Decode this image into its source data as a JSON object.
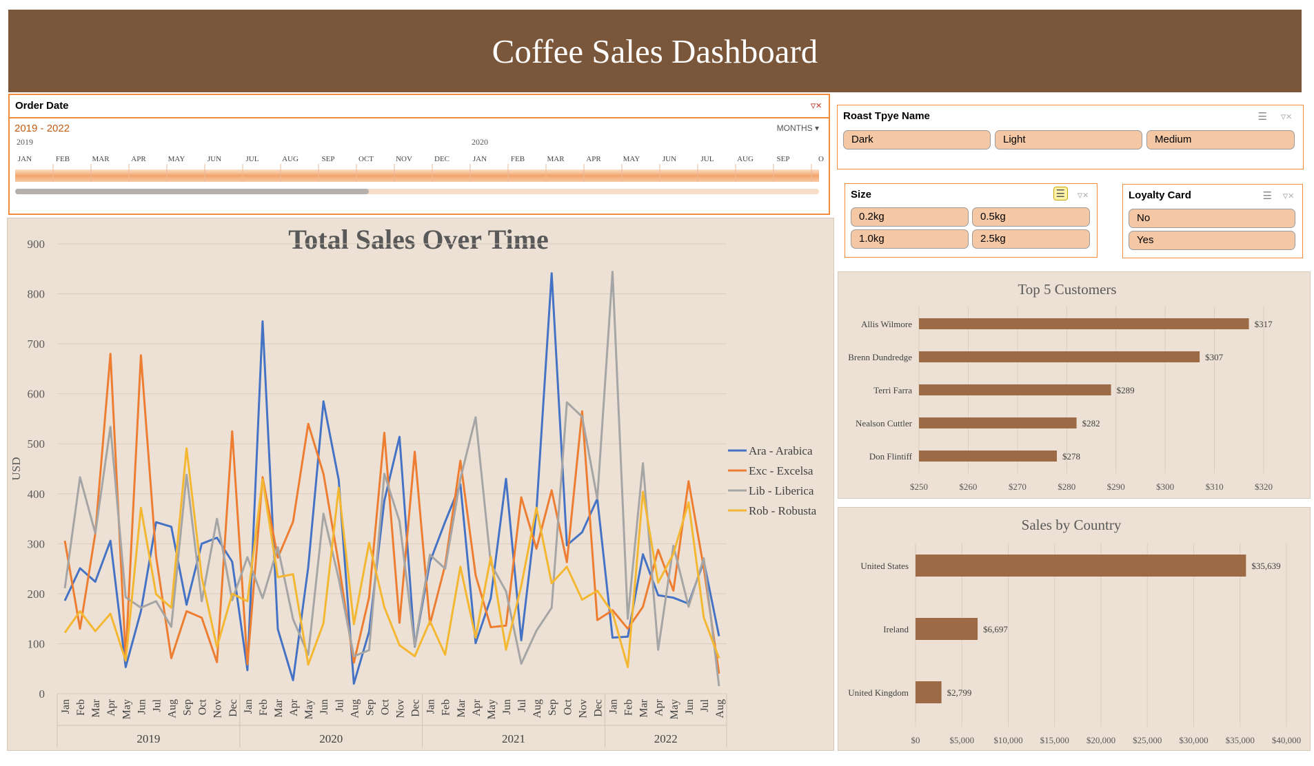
{
  "header": {
    "title": "Coffee Sales Dashboard"
  },
  "timeline": {
    "title": "Order Date",
    "range": "2019 - 2022",
    "unit": "MONTHS",
    "years": [
      "2019",
      "2020"
    ],
    "months": [
      "JAN",
      "FEB",
      "MAR",
      "APR",
      "MAY",
      "JUN",
      "JUL",
      "AUG",
      "SEP",
      "OCT",
      "NOV",
      "DEC",
      "JAN",
      "FEB",
      "MAR",
      "APR",
      "MAY",
      "JUN",
      "JUL",
      "AUG",
      "SEP",
      "O"
    ],
    "scroll_position": 0.44
  },
  "slicers": {
    "roast": {
      "title": "Roast Tpye Name",
      "items": [
        "Dark",
        "Light",
        "Medium"
      ]
    },
    "size": {
      "title": "Size",
      "items": [
        "0.2kg",
        "0.5kg",
        "1.0kg",
        "2.5kg"
      ]
    },
    "loyalty": {
      "title": "Loyalty Card",
      "items": [
        "No",
        "Yes"
      ]
    }
  },
  "colors": {
    "brand": "#7a563b",
    "accent": "#ef8b3a",
    "chip": "#f4c8a5",
    "chart_bg": "#ede1d5",
    "bar": "#9c6a45"
  },
  "chart_data": [
    {
      "type": "line",
      "title": "Total Sales Over Time",
      "xlabel": "",
      "ylabel": "USD",
      "ylim": [
        0,
        900
      ],
      "yticks": [
        0,
        100,
        200,
        300,
        400,
        500,
        600,
        700,
        800,
        900
      ],
      "grid": true,
      "legend": "right",
      "x_months": [
        "Jan",
        "Feb",
        "Mar",
        "Apr",
        "May",
        "Jun",
        "Jul",
        "Aug",
        "Sep",
        "Oct",
        "Nov",
        "Dec",
        "Jan",
        "Feb",
        "Mar",
        "Apr",
        "May",
        "Jun",
        "Jul",
        "Aug",
        "Sep",
        "Oct",
        "Nov",
        "Dec",
        "Jan",
        "Feb",
        "Mar",
        "Apr",
        "May",
        "Jun",
        "Jul",
        "Aug",
        "Sep",
        "Oct",
        "Nov",
        "Dec",
        "Jan",
        "Feb",
        "Mar",
        "Apr",
        "May",
        "Jun",
        "Jul",
        "Aug"
      ],
      "x_years": [
        "2019",
        "2020",
        "2021",
        "2022"
      ],
      "series": [
        {
          "name": "Ara - Arabica",
          "color": "#4472c4",
          "values": [
            186,
            251,
            224,
            306,
            53,
            165,
            343,
            334,
            178,
            300,
            312,
            264,
            47,
            745,
            129,
            27,
            253,
            585,
            428,
            20,
            124,
            386,
            514,
            94,
            264,
            344,
            419,
            101,
            191,
            430,
            107,
            365,
            841,
            297,
            323,
            390,
            112,
            114,
            279,
            197,
            192,
            180,
            265,
            115
          ]
        },
        {
          "name": "Exc - Excelsa",
          "color": "#ed7d31",
          "values": [
            306,
            130,
            320,
            680,
            72,
            677,
            275,
            71,
            165,
            152,
            63,
            525,
            59,
            433,
            272,
            344,
            540,
            440,
            260,
            62,
            193,
            522,
            142,
            484,
            139,
            257,
            466,
            237,
            133,
            136,
            393,
            290,
            407,
            263,
            565,
            147,
            167,
            130,
            174,
            288,
            206,
            425,
            251,
            40
          ]
        },
        {
          "name": "Lib - Liberica",
          "color": "#a5a5a5",
          "values": [
            211,
            433,
            321,
            534,
            193,
            172,
            185,
            134,
            438,
            185,
            350,
            187,
            273,
            191,
            293,
            149,
            78,
            360,
            230,
            75,
            87,
            440,
            345,
            95,
            278,
            250,
            430,
            553,
            260,
            205,
            60,
            126,
            172,
            583,
            554,
            390,
            844,
            150,
            461,
            88,
            296,
            174,
            271,
            15
          ]
        },
        {
          "name": "Rob - Robusta",
          "color": "#f4b731",
          "values": [
            122,
            165,
            125,
            160,
            66,
            372,
            199,
            172,
            491,
            233,
            93,
            200,
            185,
            429,
            233,
            239,
            58,
            141,
            412,
            139,
            302,
            173,
            97,
            75,
            145,
            78,
            254,
            112,
            274,
            88,
            216,
            372,
            221,
            254,
            188,
            206,
            162,
            53,
            404,
            222,
            280,
            383,
            152,
            71
          ]
        }
      ]
    },
    {
      "type": "bar",
      "title": "Top 5 Customers",
      "categories": [
        "Allis Wilmore",
        "Brenn Dundredge",
        "Terri Farra",
        "Nealson Cuttler",
        "Don Flintiff"
      ],
      "values": [
        317,
        307,
        289,
        282,
        278
      ],
      "value_labels": [
        "$317",
        "$307",
        "$289",
        "$282",
        "$278"
      ],
      "xlim": [
        250,
        320
      ],
      "xticks": [
        "$250",
        "$260",
        "$270",
        "$280",
        "$290",
        "$300",
        "$310",
        "$320"
      ],
      "grid": true
    },
    {
      "type": "bar",
      "title": "Sales by Country",
      "categories": [
        "United States",
        "Ireland",
        "United Kingdom"
      ],
      "values": [
        35639,
        6697,
        2799
      ],
      "value_labels": [
        "$35,639",
        "$6,697",
        "$2,799"
      ],
      "xlim": [
        0,
        40000
      ],
      "xticks": [
        "$0",
        "$5,000",
        "$10,000",
        "$15,000",
        "$20,000",
        "$25,000",
        "$30,000",
        "$35,000",
        "$40,000"
      ],
      "grid": true
    }
  ]
}
